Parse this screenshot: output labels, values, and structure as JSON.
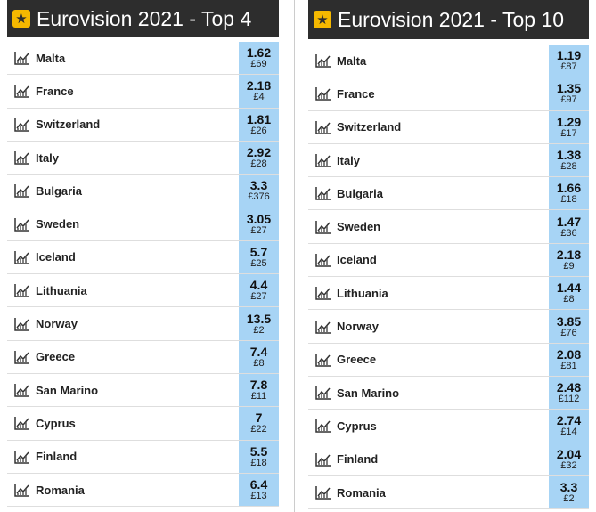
{
  "panels": [
    {
      "title": "Eurovision 2021 - Top 4",
      "rows": [
        {
          "name": "Malta",
          "odds": "1.62",
          "amount": "£69"
        },
        {
          "name": "France",
          "odds": "2.18",
          "amount": "£4"
        },
        {
          "name": "Switzerland",
          "odds": "1.81",
          "amount": "£26"
        },
        {
          "name": "Italy",
          "odds": "2.92",
          "amount": "£28"
        },
        {
          "name": "Bulgaria",
          "odds": "3.3",
          "amount": "£376"
        },
        {
          "name": "Sweden",
          "odds": "3.05",
          "amount": "£27"
        },
        {
          "name": "Iceland",
          "odds": "5.7",
          "amount": "£25"
        },
        {
          "name": "Lithuania",
          "odds": "4.4",
          "amount": "£27"
        },
        {
          "name": "Norway",
          "odds": "13.5",
          "amount": "£2"
        },
        {
          "name": "Greece",
          "odds": "7.4",
          "amount": "£8"
        },
        {
          "name": "San Marino",
          "odds": "7.8",
          "amount": "£11"
        },
        {
          "name": "Cyprus",
          "odds": "7",
          "amount": "£22"
        },
        {
          "name": "Finland",
          "odds": "5.5",
          "amount": "£18"
        },
        {
          "name": "Romania",
          "odds": "6.4",
          "amount": "£13"
        }
      ]
    },
    {
      "title": "Eurovision 2021 - Top 10",
      "rows": [
        {
          "name": "Malta",
          "odds": "1.19",
          "amount": "£87"
        },
        {
          "name": "France",
          "odds": "1.35",
          "amount": "£97"
        },
        {
          "name": "Switzerland",
          "odds": "1.29",
          "amount": "£17"
        },
        {
          "name": "Italy",
          "odds": "1.38",
          "amount": "£28"
        },
        {
          "name": "Bulgaria",
          "odds": "1.66",
          "amount": "£18"
        },
        {
          "name": "Sweden",
          "odds": "1.47",
          "amount": "£36"
        },
        {
          "name": "Iceland",
          "odds": "2.18",
          "amount": "£9"
        },
        {
          "name": "Lithuania",
          "odds": "1.44",
          "amount": "£8"
        },
        {
          "name": "Norway",
          "odds": "3.85",
          "amount": "£76"
        },
        {
          "name": "Greece",
          "odds": "2.08",
          "amount": "£81"
        },
        {
          "name": "San Marino",
          "odds": "2.48",
          "amount": "£112"
        },
        {
          "name": "Cyprus",
          "odds": "2.74",
          "amount": "£14"
        },
        {
          "name": "Finland",
          "odds": "2.04",
          "amount": "£32"
        },
        {
          "name": "Romania",
          "odds": "3.3",
          "amount": "£2"
        }
      ]
    }
  ]
}
